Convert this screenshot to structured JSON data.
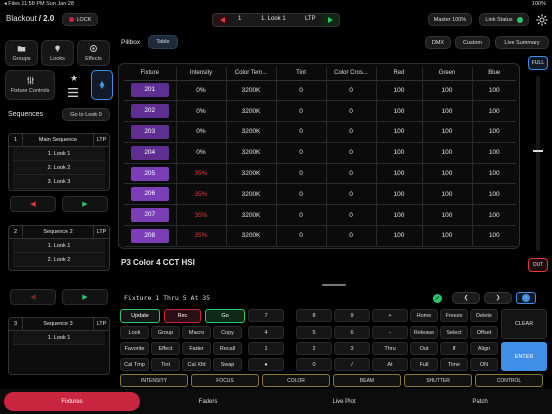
{
  "status_bar": {
    "left": "◂ Files  11:58 PM  Sun Jan 28",
    "right": "100%"
  },
  "header": {
    "title": "Blackout",
    "version": "/ 2.0",
    "lock_label": "LOCK",
    "cue_number": "1",
    "cue_name": "1. Look 1",
    "cue_mode": "LTP",
    "master_label": "Master 100%",
    "link_status_label": "Link Status"
  },
  "nav": {
    "groups": "Groups",
    "looks": "Looks",
    "effects": "Effects",
    "fixture_controls": "Fixture Controls"
  },
  "sequences": {
    "title": "Sequences",
    "goto_label": "Go to Look 0",
    "items": [
      {
        "number": "1",
        "name": "Main Sequence",
        "mode": "LTP",
        "cues": [
          "1. Look 1",
          "2. Look 2",
          "3. Look 3"
        ]
      },
      {
        "number": "2",
        "name": "Sequence 2",
        "mode": "LTP",
        "cues": [
          "1. Look 1",
          "2. Look 2"
        ]
      },
      {
        "number": "3",
        "name": "Sequence 3",
        "mode": "LTP",
        "cues": [
          "1. Look 1"
        ]
      }
    ]
  },
  "view_tabs": {
    "pillbox": "Pillbox",
    "table": "Table"
  },
  "right_tabs": {
    "dmx": "DMX",
    "custom": "Custom",
    "live_summary": "Live Summary"
  },
  "fader": {
    "full_label": "FULL",
    "out_label": "OUT",
    "level": 0.58
  },
  "fixture_table": {
    "columns": [
      "Fixture",
      "Intensity",
      "Color Tem...",
      "Tint",
      "Color Cros...",
      "Red",
      "Green",
      "Blue"
    ],
    "rows": [
      {
        "fixture": "201",
        "intensity": "0%",
        "color_temp": "3200K",
        "tint": "0",
        "color_cross": "0",
        "red": "100",
        "green": "100",
        "blue": "100",
        "active": false
      },
      {
        "fixture": "202",
        "intensity": "0%",
        "color_temp": "3200K",
        "tint": "0",
        "color_cross": "0",
        "red": "100",
        "green": "100",
        "blue": "100",
        "active": false
      },
      {
        "fixture": "203",
        "intensity": "0%",
        "color_temp": "3200K",
        "tint": "0",
        "color_cross": "0",
        "red": "100",
        "green": "100",
        "blue": "100",
        "active": false
      },
      {
        "fixture": "204",
        "intensity": "0%",
        "color_temp": "3200K",
        "tint": "0",
        "color_cross": "0",
        "red": "100",
        "green": "100",
        "blue": "100",
        "active": false
      },
      {
        "fixture": "205",
        "intensity": "35%",
        "color_temp": "3200K",
        "tint": "0",
        "color_cross": "0",
        "red": "100",
        "green": "100",
        "blue": "100",
        "active": true
      },
      {
        "fixture": "206",
        "intensity": "35%",
        "color_temp": "3200K",
        "tint": "0",
        "color_cross": "0",
        "red": "100",
        "green": "100",
        "blue": "100",
        "active": true
      },
      {
        "fixture": "207",
        "intensity": "35%",
        "color_temp": "3200K",
        "tint": "0",
        "color_cross": "0",
        "red": "100",
        "green": "100",
        "blue": "100",
        "active": true
      },
      {
        "fixture": "208",
        "intensity": "35%",
        "color_temp": "3200K",
        "tint": "0",
        "color_cross": "0",
        "red": "100",
        "green": "100",
        "blue": "100",
        "active": true
      }
    ]
  },
  "fixture_profile_title": "P3 Color 4 CCT HSI",
  "command_line": "Fixture 1 Thru 5 At 35",
  "keypad": {
    "update": "Update",
    "rec": "Rec",
    "go": "Go",
    "row1": [
      "Look",
      "Group",
      "Macro",
      "Copy"
    ],
    "row2": [
      "Favorite",
      "Effect",
      "Fader",
      "Recall"
    ],
    "row3": [
      "Cal Tmp",
      "Tint",
      "Cal Xfd",
      "Swap"
    ],
    "numbers": [
      [
        "7",
        "8",
        "9",
        "+"
      ],
      [
        "4",
        "5",
        "6",
        "-"
      ],
      [
        "1",
        "2",
        "3",
        "Thru"
      ],
      [
        "●",
        "0",
        "/",
        "At"
      ]
    ],
    "right": [
      [
        "Home",
        "Freeze",
        "Delete"
      ],
      [
        "Release",
        "Select",
        "Offset"
      ],
      [
        "Out",
        "If",
        "Align"
      ],
      [
        "Full",
        "Time",
        "ON"
      ]
    ],
    "clear": "CLEAR",
    "enter": "ENTER"
  },
  "attributes": [
    "INTENSITY",
    "FOCUS",
    "COLOR",
    "BEAM",
    "SHUTTER",
    "CONTROL"
  ],
  "bottom_nav": [
    "Fixtures",
    "Faders",
    "Live Plot",
    "Patch"
  ],
  "colors": {
    "accent_red": "#c8263e",
    "fixture_purple": "#7a3fb7",
    "enter_blue": "#3f8fe6",
    "status_green": "#2ec46c"
  }
}
